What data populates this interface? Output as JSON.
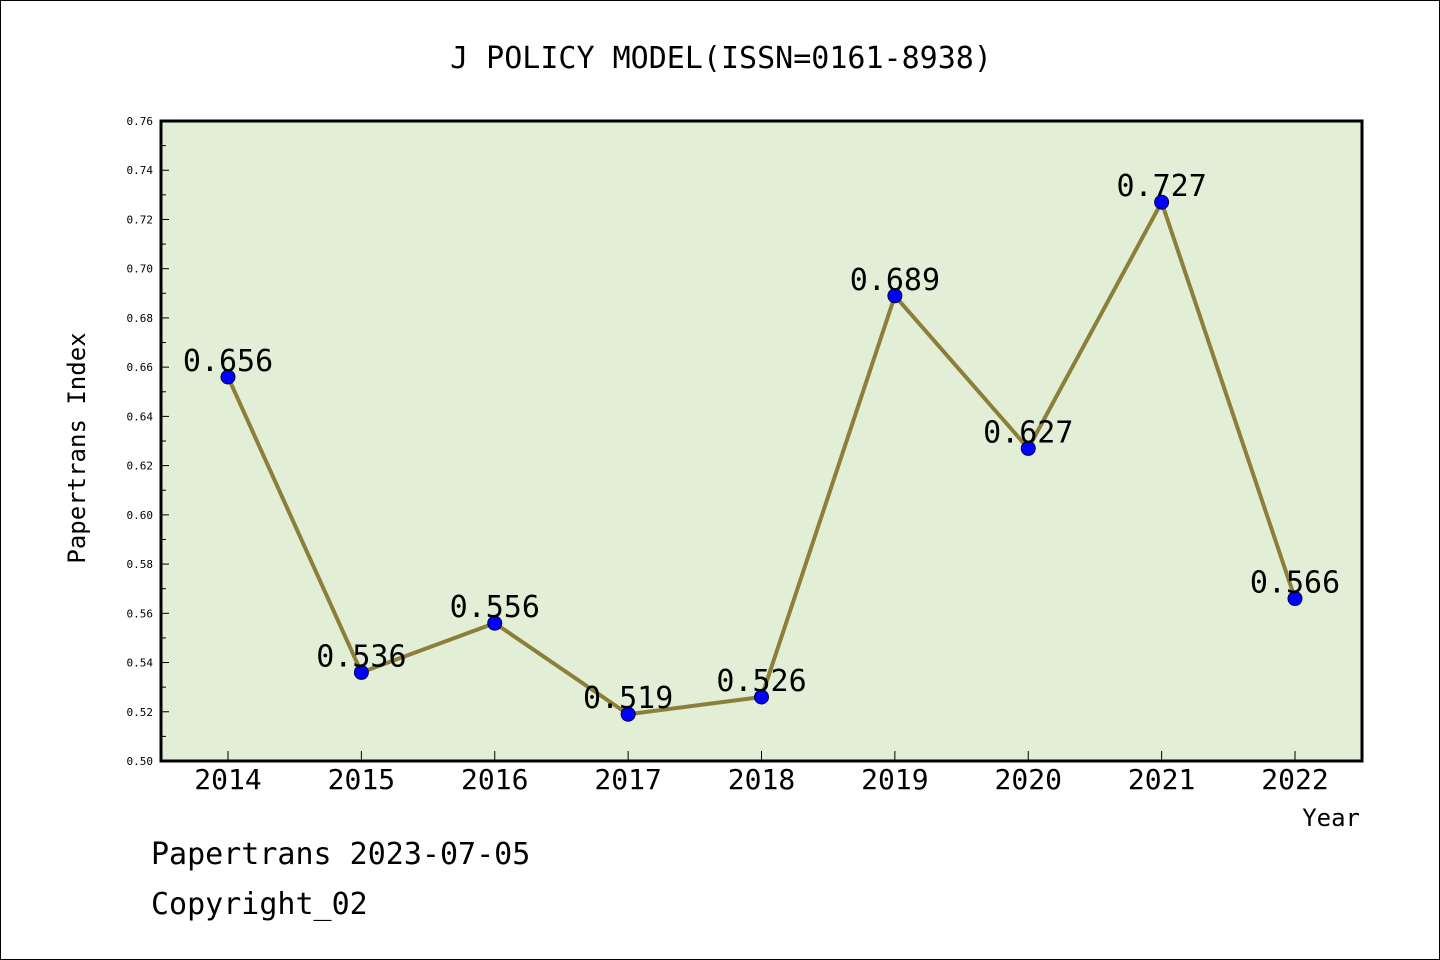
{
  "chart_data": {
    "type": "line",
    "title": "J POLICY MODEL(ISSN=0161-8938)",
    "xlabel": "Year",
    "ylabel": "Papertrans Index",
    "categories": [
      "2014",
      "2015",
      "2016",
      "2017",
      "2018",
      "2019",
      "2020",
      "2021",
      "2022"
    ],
    "series": [
      {
        "values": [
          0.656,
          0.536,
          0.556,
          0.519,
          0.526,
          0.689,
          0.627,
          0.727,
          0.566
        ],
        "data_labels": [
          "0.656",
          "0.536",
          "0.556",
          "0.519",
          "0.526",
          "0.689",
          "0.627",
          "0.727",
          "0.566"
        ]
      }
    ],
    "ylim": [
      0.5,
      0.76
    ],
    "yticks": [
      0.5,
      0.52,
      0.54,
      0.56,
      0.58,
      0.6,
      0.62,
      0.64,
      0.66,
      0.68,
      0.7,
      0.72,
      0.74,
      0.76
    ],
    "ytick_labels": [
      "0.50",
      "0.52",
      "0.54",
      "0.56",
      "0.58",
      "0.60",
      "0.62",
      "0.64",
      "0.66",
      "0.68",
      "0.70",
      "0.72",
      "0.74",
      "0.76"
    ],
    "grid": false,
    "legend": "none",
    "colors": {
      "plot_background": "#e2efd6",
      "line": "#8c7f3a",
      "marker": "#0000ff",
      "axis": "#000000"
    }
  },
  "footer": {
    "line1": "Papertrans 2023-07-05",
    "line2": "Copyright_02"
  }
}
